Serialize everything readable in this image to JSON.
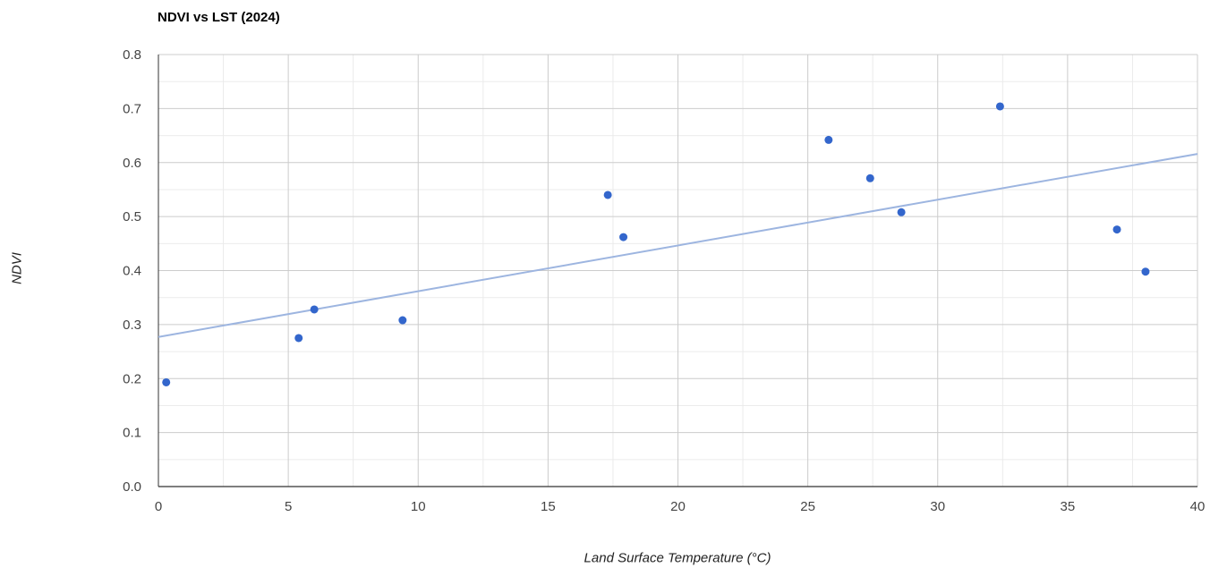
{
  "chart_data": {
    "type": "scatter",
    "title": "NDVI vs LST (2024)",
    "xlabel": "Land Surface Temperature (°C)",
    "ylabel": "NDVI",
    "xlim": [
      0,
      40
    ],
    "ylim": [
      0,
      0.8
    ],
    "x_ticks": [
      "0",
      "5",
      "10",
      "15",
      "20",
      "25",
      "30",
      "35",
      "40"
    ],
    "y_ticks": [
      "0.0",
      "0.1",
      "0.2",
      "0.3",
      "0.4",
      "0.5",
      "0.6",
      "0.7",
      "0.8"
    ],
    "x_tick_values": [
      0,
      5,
      10,
      15,
      20,
      25,
      30,
      35,
      40
    ],
    "y_tick_values": [
      0,
      0.1,
      0.2,
      0.3,
      0.4,
      0.5,
      0.6,
      0.7,
      0.8
    ],
    "grid": true,
    "points": [
      {
        "x": 0.3,
        "y": 0.193
      },
      {
        "x": 5.4,
        "y": 0.275
      },
      {
        "x": 6.0,
        "y": 0.328
      },
      {
        "x": 9.4,
        "y": 0.308
      },
      {
        "x": 17.3,
        "y": 0.54
      },
      {
        "x": 17.9,
        "y": 0.462
      },
      {
        "x": 25.8,
        "y": 0.642
      },
      {
        "x": 27.4,
        "y": 0.571
      },
      {
        "x": 28.6,
        "y": 0.508
      },
      {
        "x": 32.4,
        "y": 0.704
      },
      {
        "x": 36.9,
        "y": 0.476
      },
      {
        "x": 38.0,
        "y": 0.398
      }
    ],
    "trendline": {
      "x": [
        0,
        40
      ],
      "y": [
        0.277,
        0.616
      ]
    },
    "colors": {
      "points": "#3366cc",
      "trendline": "#9db5e0",
      "grid_major": "#cccccc",
      "grid_minor": "#ebebeb",
      "axis": "#333333"
    }
  }
}
